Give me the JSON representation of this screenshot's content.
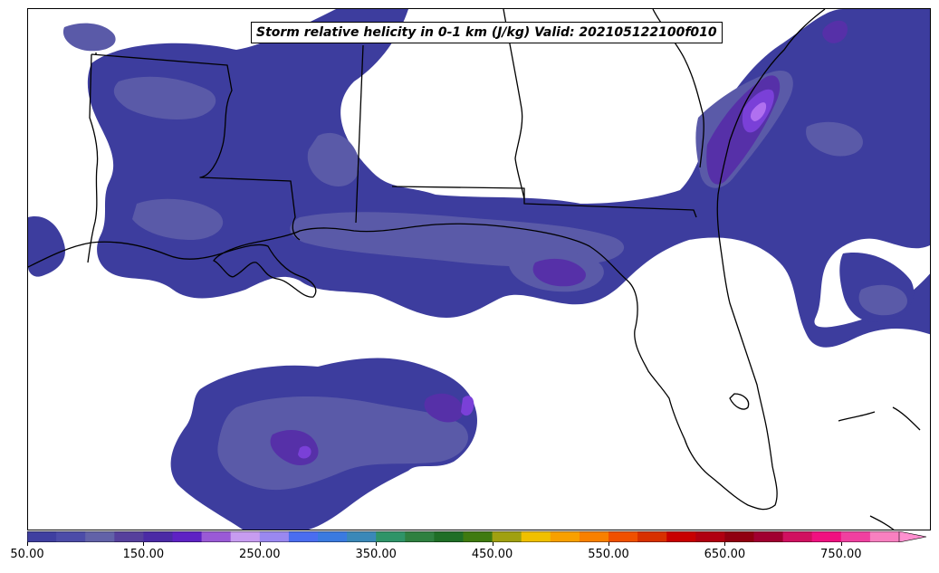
{
  "title": "Storm relative helicity in 0-1 km (J/kg) Valid: 202105122100f010",
  "colorbar": {
    "min": 50,
    "max": 800,
    "step": 25,
    "extend": "max",
    "tick_labels": [
      "50.00",
      "150.00",
      "250.00",
      "350.00",
      "450.00",
      "550.00",
      "650.00",
      "750.00"
    ],
    "tick_values": [
      50,
      150,
      250,
      350,
      450,
      550,
      650,
      750
    ],
    "colors": [
      "#3f3fa0",
      "#4c4ca8",
      "#6262a8",
      "#56409c",
      "#4b2ba5",
      "#5e22c4",
      "#9a5ad6",
      "#c79cf0",
      "#9a88f0",
      "#4a6df0",
      "#3a7ae0",
      "#3a88b8",
      "#2f9468",
      "#2f8040",
      "#1f6e26",
      "#3f7a10",
      "#a0a010",
      "#f0c000",
      "#f8a000",
      "#f88000",
      "#f05000",
      "#d83000",
      "#c80000",
      "#b00010",
      "#900010",
      "#a00030",
      "#d01060",
      "#f01080",
      "#f040a0",
      "#f880c0"
    ],
    "over_color": "#ff90d0"
  },
  "map": {
    "field": "Storm relative helicity 0-1 km",
    "units": "J/kg",
    "region": "US Gulf Coast / Southeast",
    "fill_colors": {
      "level1": "#3d3d9e",
      "level2": "#5a5aa8",
      "level3": "#5630a8",
      "level4": "#7a40d8",
      "level5": "#b070f0"
    },
    "line_color": "#000000"
  }
}
